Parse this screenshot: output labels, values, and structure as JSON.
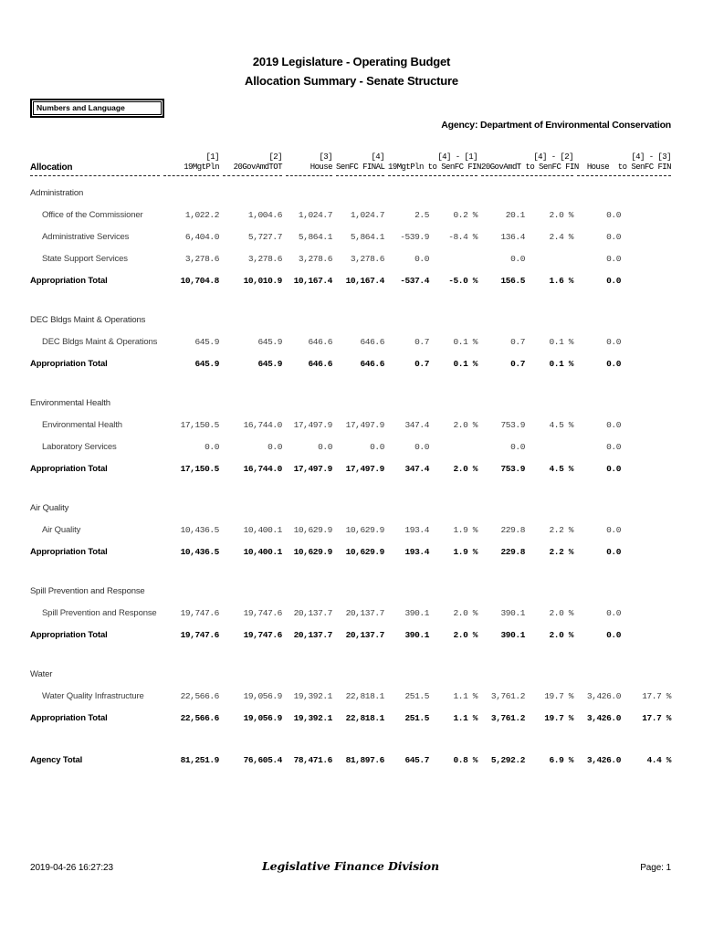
{
  "header": {
    "title": "2019 Legislature - Operating Budget",
    "subtitle": "Allocation Summary - Senate Structure",
    "tag": "Numbers and Language",
    "agency": "Agency: Department of Environmental Conservation"
  },
  "table": {
    "allocation_header": "Allocation",
    "tier1": [
      "[1]",
      "[2]",
      "[3]",
      "[4]",
      "[4] - [1]",
      "[4] - [2]",
      "[4] - [3]"
    ],
    "tier2": [
      "19MgtPln",
      "20GovAmdTOT",
      "House",
      "SenFC FINAL",
      "19MgtPln to SenFC FIN",
      "20GovAmdT to SenFC FIN",
      "House  to SenFC FIN"
    ],
    "sections": [
      {
        "name": "Administration",
        "rows": [
          {
            "label": "Office of the Commissioner",
            "values": [
              "1,022.2",
              "1,004.6",
              "1,024.7",
              "1,024.7",
              "2.5",
              "0.2 %",
              "20.1",
              "2.0 %",
              "0.0",
              ""
            ]
          },
          {
            "label": "Administrative Services",
            "values": [
              "6,404.0",
              "5,727.7",
              "5,864.1",
              "5,864.1",
              "-539.9",
              "-8.4 %",
              "136.4",
              "2.4 %",
              "0.0",
              ""
            ]
          },
          {
            "label": "State Support Services",
            "values": [
              "3,278.6",
              "3,278.6",
              "3,278.6",
              "3,278.6",
              "0.0",
              "",
              "0.0",
              "",
              "0.0",
              ""
            ]
          }
        ],
        "total": {
          "label": "Appropriation Total",
          "values": [
            "10,704.8",
            "10,010.9",
            "10,167.4",
            "10,167.4",
            "-537.4",
            "-5.0 %",
            "156.5",
            "1.6 %",
            "0.0",
            ""
          ]
        }
      },
      {
        "name": "DEC Bldgs Maint & Operations",
        "rows": [
          {
            "label": "DEC Bldgs Maint & Operations",
            "values": [
              "645.9",
              "645.9",
              "646.6",
              "646.6",
              "0.7",
              "0.1 %",
              "0.7",
              "0.1 %",
              "0.0",
              ""
            ]
          }
        ],
        "total": {
          "label": "Appropriation Total",
          "values": [
            "645.9",
            "645.9",
            "646.6",
            "646.6",
            "0.7",
            "0.1 %",
            "0.7",
            "0.1 %",
            "0.0",
            ""
          ]
        }
      },
      {
        "name": "Environmental Health",
        "rows": [
          {
            "label": "Environmental Health",
            "values": [
              "17,150.5",
              "16,744.0",
              "17,497.9",
              "17,497.9",
              "347.4",
              "2.0 %",
              "753.9",
              "4.5 %",
              "0.0",
              ""
            ]
          },
          {
            "label": "Laboratory Services",
            "values": [
              "0.0",
              "0.0",
              "0.0",
              "0.0",
              "0.0",
              "",
              "0.0",
              "",
              "0.0",
              ""
            ]
          }
        ],
        "total": {
          "label": "Appropriation Total",
          "values": [
            "17,150.5",
            "16,744.0",
            "17,497.9",
            "17,497.9",
            "347.4",
            "2.0 %",
            "753.9",
            "4.5 %",
            "0.0",
            ""
          ]
        }
      },
      {
        "name": "Air Quality",
        "rows": [
          {
            "label": "Air Quality",
            "values": [
              "10,436.5",
              "10,400.1",
              "10,629.9",
              "10,629.9",
              "193.4",
              "1.9 %",
              "229.8",
              "2.2 %",
              "0.0",
              ""
            ]
          }
        ],
        "total": {
          "label": "Appropriation Total",
          "values": [
            "10,436.5",
            "10,400.1",
            "10,629.9",
            "10,629.9",
            "193.4",
            "1.9 %",
            "229.8",
            "2.2 %",
            "0.0",
            ""
          ]
        }
      },
      {
        "name": "Spill Prevention and Response",
        "rows": [
          {
            "label": "Spill Prevention and Response",
            "values": [
              "19,747.6",
              "19,747.6",
              "20,137.7",
              "20,137.7",
              "390.1",
              "2.0 %",
              "390.1",
              "2.0 %",
              "0.0",
              ""
            ]
          }
        ],
        "total": {
          "label": "Appropriation Total",
          "values": [
            "19,747.6",
            "19,747.6",
            "20,137.7",
            "20,137.7",
            "390.1",
            "2.0 %",
            "390.1",
            "2.0 %",
            "0.0",
            ""
          ]
        }
      },
      {
        "name": "Water",
        "rows": [
          {
            "label": "Water Quality Infrastructure",
            "values": [
              "22,566.6",
              "19,056.9",
              "19,392.1",
              "22,818.1",
              "251.5",
              "1.1 %",
              "3,761.2",
              "19.7 %",
              "3,426.0",
              "17.7 %"
            ]
          }
        ],
        "total": {
          "label": "Appropriation Total",
          "values": [
            "22,566.6",
            "19,056.9",
            "19,392.1",
            "22,818.1",
            "251.5",
            "1.1 %",
            "3,761.2",
            "19.7 %",
            "3,426.0",
            "17.7 %"
          ]
        }
      }
    ],
    "agency_total": {
      "label": "Agency Total",
      "values": [
        "81,251.9",
        "76,605.4",
        "78,471.6",
        "81,897.6",
        "645.7",
        "0.8 %",
        "5,292.2",
        "6.9 %",
        "3,426.0",
        "4.4 %"
      ]
    }
  },
  "footer": {
    "timestamp": "2019-04-26 16:27:23",
    "division": "Legislative Finance Division",
    "page": "Page: 1"
  }
}
